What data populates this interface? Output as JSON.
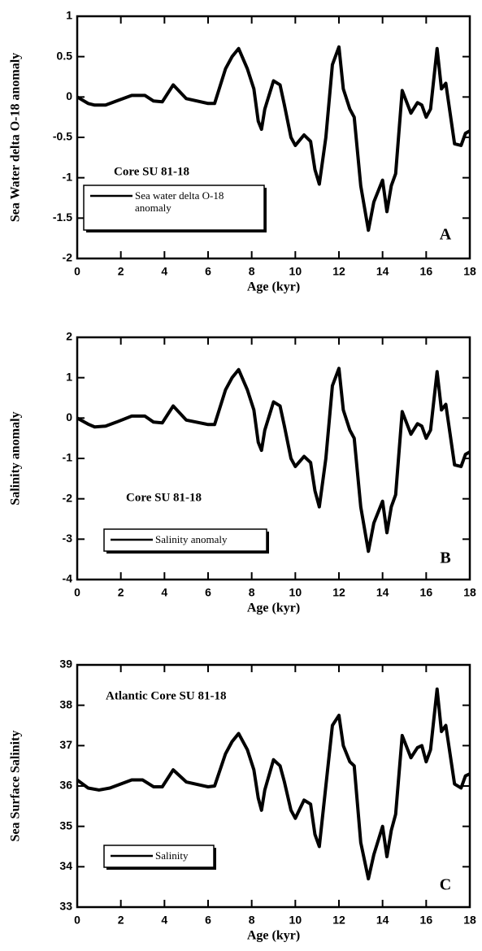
{
  "chart_data": [
    {
      "type": "line",
      "x": [
        0,
        0.5,
        0.8,
        1.3,
        1.8,
        2.5,
        3.1,
        3.5,
        3.9,
        4.4,
        5.0,
        6.0,
        6.3,
        6.8,
        7.1,
        7.4,
        7.8,
        8.1,
        8.3,
        8.45,
        8.6,
        9.0,
        9.3,
        9.5,
        9.8,
        10.0,
        10.4,
        10.7,
        10.9,
        11.1,
        11.4,
        11.7,
        12.0,
        12.2,
        12.5,
        12.7,
        13.0,
        13.35,
        13.6,
        14.0,
        14.2,
        14.4,
        14.6,
        14.9,
        15.3,
        15.6,
        15.8,
        16.0,
        16.2,
        16.5,
        16.7,
        16.9,
        17.3,
        17.6,
        17.8,
        18
      ],
      "series": [
        {
          "name": "Sea water delta O-18 anomaly",
          "color": "#000000",
          "values": [
            0,
            -0.08,
            -0.1,
            -0.1,
            -0.05,
            0.02,
            0.02,
            -0.05,
            -0.06,
            0.15,
            -0.02,
            -0.08,
            -0.08,
            0.35,
            0.5,
            0.6,
            0.35,
            0.1,
            -0.3,
            -0.4,
            -0.15,
            0.2,
            0.15,
            -0.1,
            -0.5,
            -0.6,
            -0.47,
            -0.55,
            -0.9,
            -1.08,
            -0.5,
            0.4,
            0.62,
            0.1,
            -0.15,
            -0.25,
            -1.1,
            -1.65,
            -1.3,
            -1.03,
            -1.42,
            -1.1,
            -0.95,
            0.08,
            -0.2,
            -0.07,
            -0.1,
            -0.25,
            -0.15,
            0.6,
            0.1,
            0.17,
            -0.58,
            -0.6,
            -0.45,
            -0.42
          ]
        }
      ],
      "xlim": [
        0,
        18
      ],
      "xticks": [
        0,
        2,
        4,
        6,
        8,
        10,
        12,
        14,
        16,
        18
      ],
      "ylim": [
        -2,
        1
      ],
      "yticks": [
        -2,
        -1.5,
        -1,
        -0.5,
        0,
        0.5,
        1
      ],
      "x_label": "Age (kyr)",
      "y_label": "Sea Water delta O-18 anomaly",
      "annotation": "Core SU 81-18",
      "panel_label": "A"
    },
    {
      "type": "line",
      "x": [
        0,
        0.5,
        0.8,
        1.3,
        1.8,
        2.5,
        3.1,
        3.5,
        3.9,
        4.4,
        5.0,
        6.0,
        6.3,
        6.8,
        7.1,
        7.4,
        7.8,
        8.1,
        8.3,
        8.45,
        8.6,
        9.0,
        9.3,
        9.5,
        9.8,
        10.0,
        10.4,
        10.7,
        10.9,
        11.1,
        11.4,
        11.7,
        12.0,
        12.2,
        12.5,
        12.7,
        13.0,
        13.35,
        13.6,
        14.0,
        14.2,
        14.4,
        14.6,
        14.9,
        15.3,
        15.6,
        15.8,
        16.0,
        16.2,
        16.5,
        16.7,
        16.9,
        17.3,
        17.6,
        17.8,
        18
      ],
      "series": [
        {
          "name": "Salinity anomaly",
          "color": "#000000",
          "values": [
            0,
            -0.15,
            -0.22,
            -0.2,
            -0.1,
            0.05,
            0.05,
            -0.1,
            -0.12,
            0.3,
            -0.05,
            -0.16,
            -0.16,
            0.7,
            1.0,
            1.2,
            0.7,
            0.2,
            -0.6,
            -0.8,
            -0.3,
            0.4,
            0.3,
            -0.2,
            -1.0,
            -1.2,
            -0.95,
            -1.1,
            -1.8,
            -2.2,
            -1.0,
            0.8,
            1.23,
            0.2,
            -0.3,
            -0.5,
            -2.2,
            -3.3,
            -2.6,
            -2.06,
            -2.84,
            -2.2,
            -1.9,
            0.16,
            -0.4,
            -0.14,
            -0.2,
            -0.5,
            -0.3,
            1.15,
            0.2,
            0.34,
            -1.16,
            -1.2,
            -0.9,
            -0.84
          ]
        }
      ],
      "xlim": [
        0,
        18
      ],
      "xticks": [
        0,
        2,
        4,
        6,
        8,
        10,
        12,
        14,
        16,
        18
      ],
      "ylim": [
        -4,
        2
      ],
      "yticks": [
        -4,
        -3,
        -2,
        -1,
        0,
        1,
        2
      ],
      "x_label": "Age (kyr)",
      "y_label": "Salinity anomaly",
      "annotation": "Core SU 81-18",
      "panel_label": "B"
    },
    {
      "type": "line",
      "x": [
        0,
        0.5,
        1.0,
        1.5,
        2.0,
        2.5,
        3.0,
        3.5,
        3.9,
        4.4,
        5.0,
        6.0,
        6.3,
        6.8,
        7.1,
        7.4,
        7.8,
        8.1,
        8.3,
        8.45,
        8.6,
        9.0,
        9.3,
        9.5,
        9.8,
        10.0,
        10.4,
        10.7,
        10.9,
        11.1,
        11.4,
        11.7,
        12.0,
        12.2,
        12.5,
        12.7,
        13.0,
        13.35,
        13.6,
        14.0,
        14.2,
        14.4,
        14.6,
        14.9,
        15.3,
        15.6,
        15.8,
        16.0,
        16.2,
        16.5,
        16.7,
        16.9,
        17.3,
        17.6,
        17.8,
        18
      ],
      "series": [
        {
          "name": "Salinity",
          "color": "#000000",
          "values": [
            36.15,
            35.95,
            35.9,
            35.95,
            36.05,
            36.15,
            36.15,
            35.98,
            35.98,
            36.4,
            36.1,
            35.98,
            36.0,
            36.8,
            37.1,
            37.3,
            36.9,
            36.4,
            35.7,
            35.4,
            35.9,
            36.65,
            36.5,
            36.1,
            35.4,
            35.2,
            35.65,
            35.55,
            34.8,
            34.5,
            36.0,
            37.5,
            37.75,
            37.0,
            36.6,
            36.5,
            34.6,
            33.7,
            34.3,
            35.0,
            34.25,
            34.9,
            35.3,
            37.25,
            36.7,
            36.95,
            37.0,
            36.6,
            36.9,
            38.4,
            37.35,
            37.5,
            36.05,
            35.95,
            36.25,
            36.3
          ]
        }
      ],
      "xlim": [
        0,
        18
      ],
      "xticks": [
        0,
        2,
        4,
        6,
        8,
        10,
        12,
        14,
        16,
        18
      ],
      "ylim": [
        33,
        39
      ],
      "yticks": [
        33,
        34,
        35,
        36,
        37,
        38,
        39
      ],
      "x_label": "Age (kyr)",
      "y_label": "Sea Surface Salinity",
      "annotation": "Atlantic Core SU 81-18",
      "panel_label": "C"
    }
  ]
}
